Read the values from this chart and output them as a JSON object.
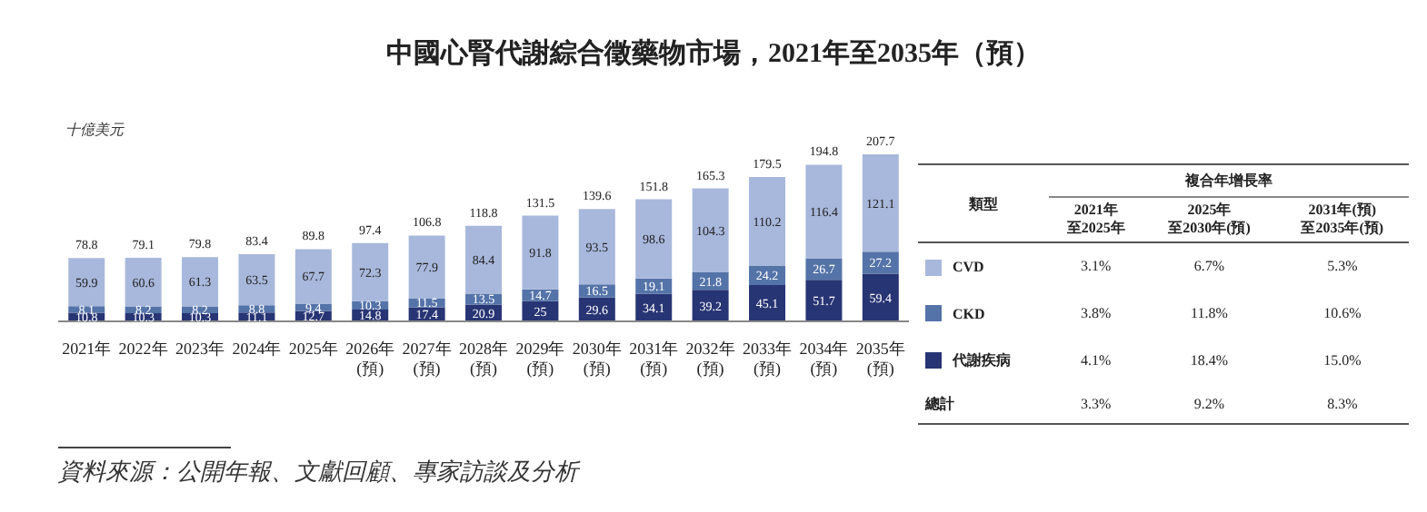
{
  "chart_data": {
    "type": "bar",
    "title": "中國心腎代謝綜合徵藥物市場，2021年至2035年（預）",
    "ylabel": "十億美元",
    "stacked": true,
    "data_labels": true,
    "legend": "right",
    "categories": [
      "2021年",
      "2022年",
      "2023年",
      "2024年",
      "2025年",
      "2026年\n(預)",
      "2027年\n(預)",
      "2028年\n(預)",
      "2029年\n(預)",
      "2030年\n(預)",
      "2031年\n(預)",
      "2032年\n(預)",
      "2033年\n(預)",
      "2034年\n(預)",
      "2035年\n(預)"
    ],
    "series": [
      {
        "name": "代謝疾病",
        "color": "#283574",
        "values": [
          10.8,
          10.3,
          10.3,
          11.1,
          12.7,
          14.8,
          17.4,
          20.9,
          25.0,
          29.6,
          34.1,
          39.2,
          45.1,
          51.7,
          59.4
        ]
      },
      {
        "name": "CKD",
        "color": "#5473a8",
        "values": [
          8.1,
          8.2,
          8.2,
          8.8,
          9.4,
          10.3,
          11.5,
          13.5,
          14.7,
          16.5,
          19.1,
          21.8,
          24.2,
          26.7,
          27.2
        ]
      },
      {
        "name": "CVD",
        "color": "#a8b8dc",
        "values": [
          59.9,
          60.6,
          61.3,
          63.5,
          67.7,
          72.3,
          77.9,
          84.4,
          91.8,
          93.5,
          98.6,
          104.3,
          110.2,
          116.4,
          121.1
        ]
      }
    ],
    "totals": [
      "78.8",
      "79.1",
      "79.8",
      "83.4",
      "89.8",
      "97.4",
      "106.8",
      "118.8",
      "131.5",
      "139.6",
      "151.8",
      "165.3",
      "179.5",
      "194.8",
      "207.7"
    ],
    "annotations": [
      "資料來源：公開年報、文獻回顧、專家訪談及分析",
      "複合年增長率",
      "類型",
      "2021年",
      "至2025年",
      "2025年",
      "至2030年(預)",
      "2031年(預)",
      "至2035年(預)",
      "3.1%",
      "6.7%",
      "5.3%",
      "3.8%",
      "11.8%",
      "10.6%",
      "4.1%",
      "18.4%",
      "15.0%",
      "總計",
      "3.3%",
      "9.2%",
      "8.3%"
    ]
  }
}
